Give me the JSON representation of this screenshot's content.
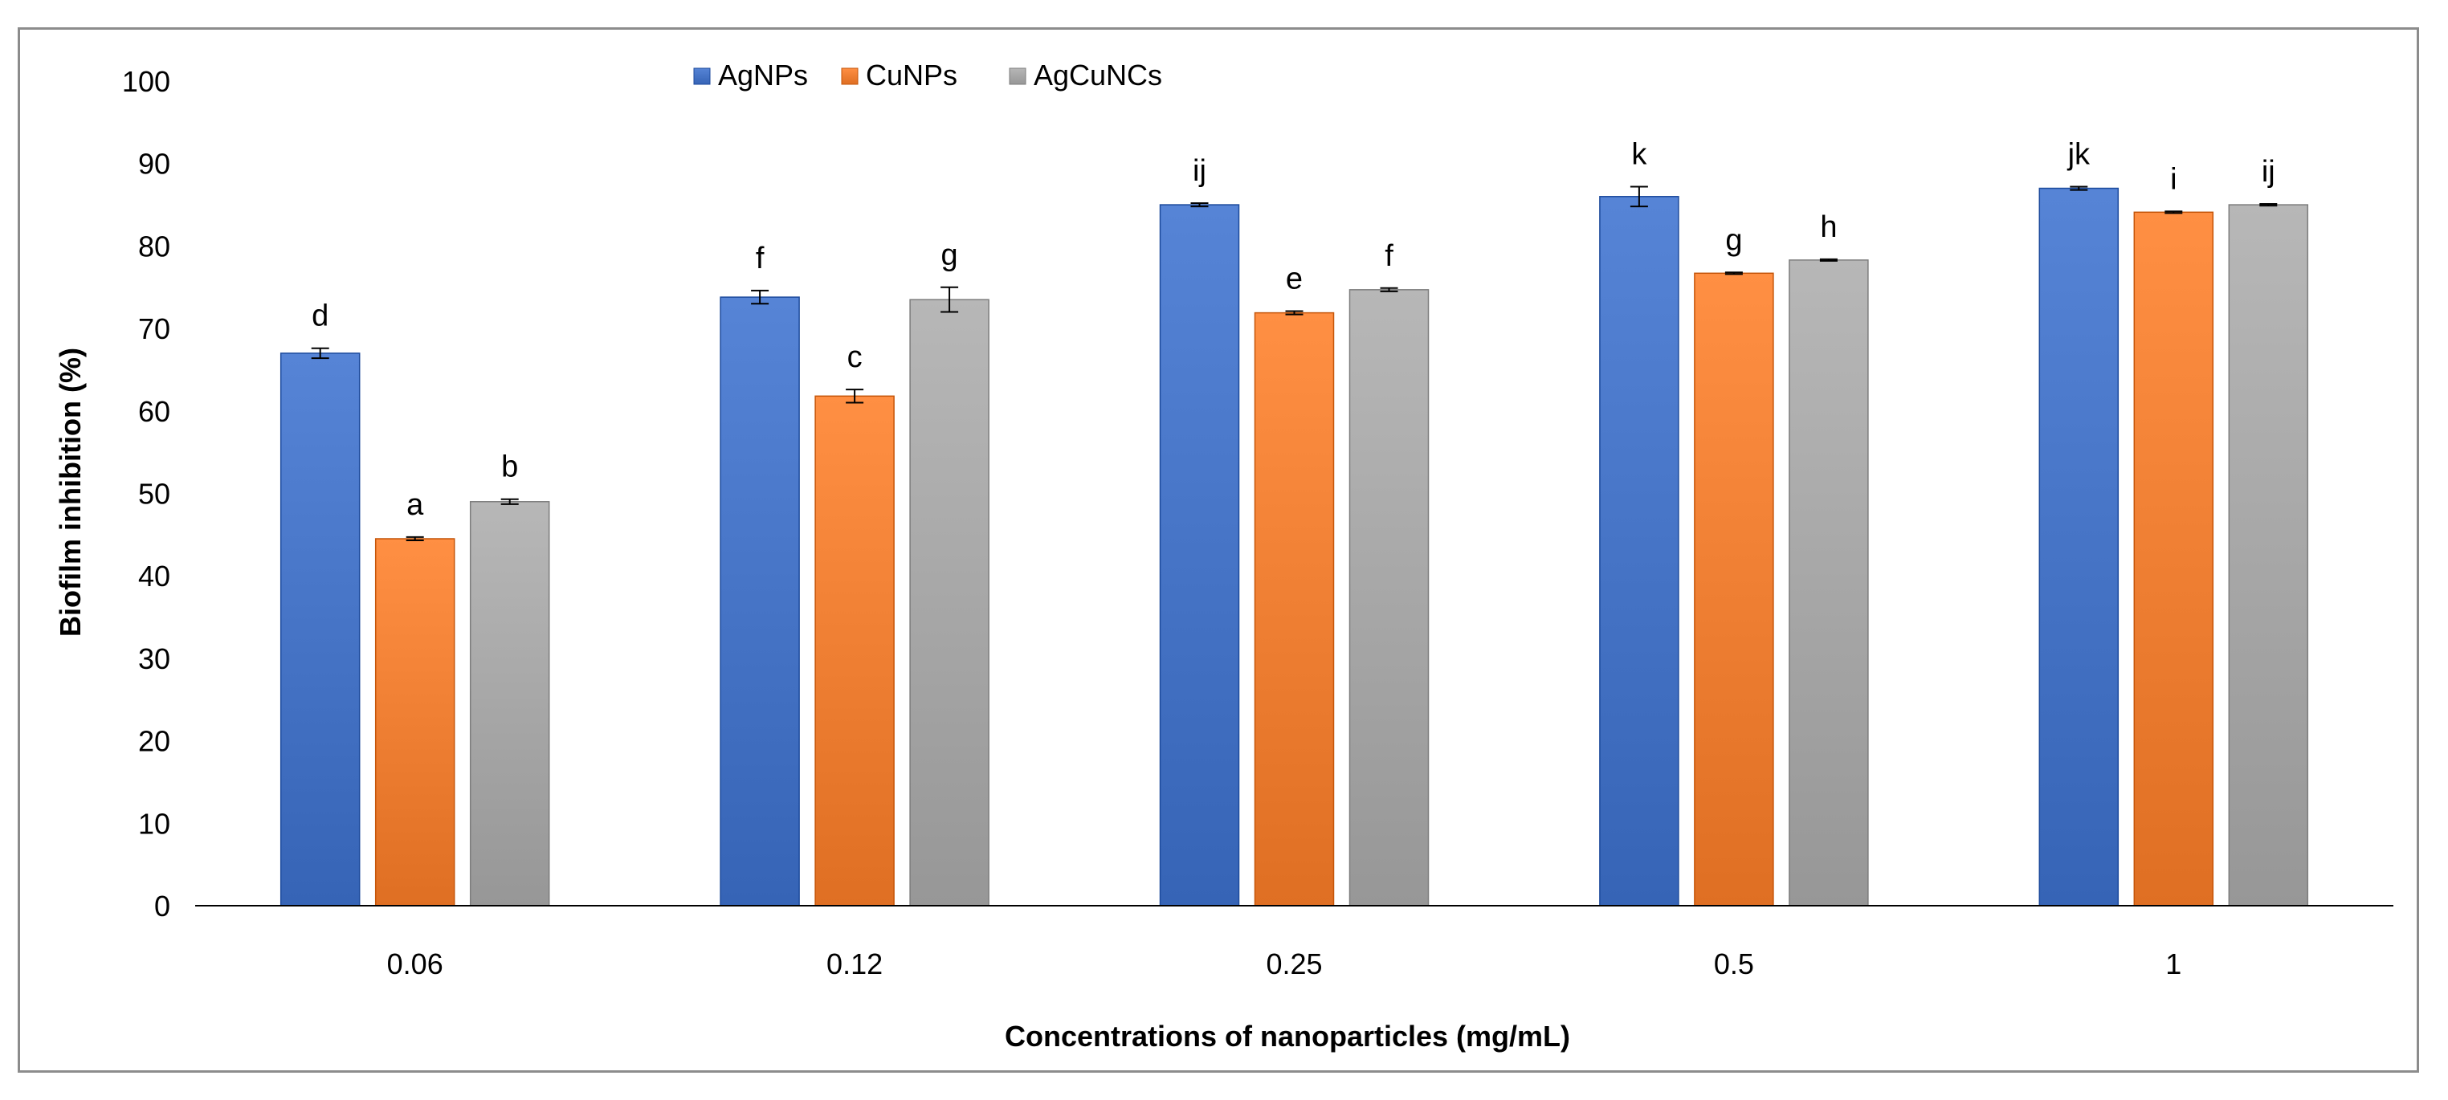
{
  "chart_data": {
    "type": "bar",
    "title": "",
    "xlabel": "Concentrations of nanoparticles (mg/mL)",
    "ylabel": "Biofilm inhibition (%)",
    "categories": [
      "0.06",
      "0.12",
      "0.25",
      "0.5",
      "1"
    ],
    "ylim": [
      0,
      100
    ],
    "yticks": [
      0,
      10,
      20,
      30,
      40,
      50,
      60,
      70,
      80,
      90,
      100
    ],
    "grid": false,
    "legend_position": "top",
    "series": [
      {
        "name": "AgNPs",
        "color": "#4472C4",
        "values": [
          67,
          73.8,
          85,
          86,
          87
        ],
        "errors": [
          0.6,
          0.8,
          0.2,
          1.2,
          0.2
        ],
        "labels": [
          "d",
          "f",
          "ij",
          "k",
          "jk"
        ]
      },
      {
        "name": "CuNPs",
        "color": "#ED7D31",
        "values": [
          44.5,
          61.8,
          71.9,
          76.7,
          84.1
        ],
        "errors": [
          0.2,
          0.8,
          0.2,
          0.1,
          0.1
        ],
        "labels": [
          "a",
          "c",
          "e",
          "g",
          "i"
        ]
      },
      {
        "name": "AgCuNCs",
        "color": "#A5A5A5",
        "values": [
          49,
          73.5,
          74.7,
          78.3,
          85
        ],
        "errors": [
          0.3,
          1.5,
          0.2,
          0.1,
          0.1
        ],
        "labels": [
          "b",
          "g",
          "f",
          "h",
          "ij"
        ]
      }
    ]
  }
}
